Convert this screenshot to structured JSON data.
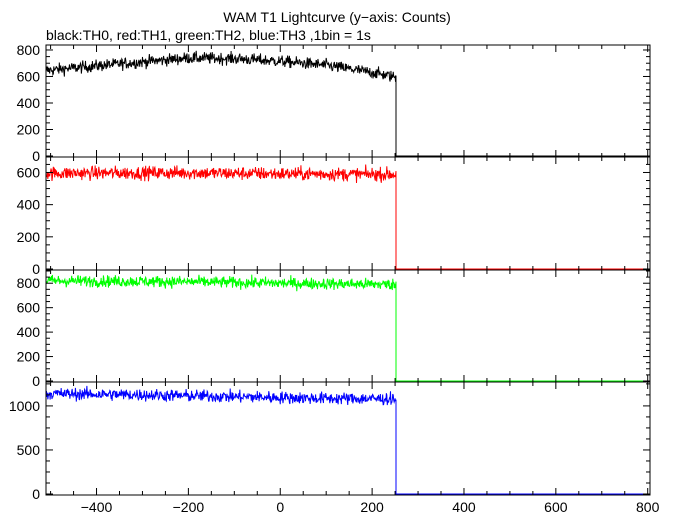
{
  "chart_data": {
    "type": "line",
    "title": "WAM T1 Lightcurve (y−axis: Counts)",
    "subtitle": "black:TH0, red:TH1, green:TH2, blue:TH3 ,1bin = 1s",
    "xlabel": "",
    "ylabel": "",
    "xlim": [
      -510,
      805
    ],
    "x_ticks": [
      -400,
      -200,
      0,
      200,
      400,
      600,
      800
    ],
    "x_tick_labels": [
      "−400",
      "−200",
      "0",
      "200",
      "400",
      "600",
      "800"
    ],
    "drop_at_x": 252,
    "grid": false,
    "panels": [
      {
        "series": "TH0",
        "color": "#000000",
        "ylim": [
          0,
          830
        ],
        "y_ticks": [
          0,
          200,
          400,
          600,
          800
        ],
        "y_tick_labels": [
          "0",
          "200",
          "400",
          "600",
          "800"
        ],
        "profile": [
          [
            -510,
            645
          ],
          [
            -400,
            680
          ],
          [
            -300,
            710
          ],
          [
            -200,
            740
          ],
          [
            -100,
            735
          ],
          [
            0,
            715
          ],
          [
            100,
            685
          ],
          [
            200,
            630
          ],
          [
            252,
            595
          ]
        ],
        "noise": 45,
        "after_value": 0
      },
      {
        "series": "TH1",
        "color": "#ff0000",
        "ylim": [
          0,
          690
        ],
        "y_ticks": [
          0,
          200,
          400,
          600
        ],
        "y_tick_labels": [
          "0",
          "200",
          "400",
          "600"
        ],
        "profile": [
          [
            -510,
            595
          ],
          [
            -200,
            598
          ],
          [
            0,
            592
          ],
          [
            252,
            588
          ]
        ],
        "noise": 42,
        "after_value": 0
      },
      {
        "series": "TH2",
        "color": "#00ff00",
        "ylim": [
          0,
          900
        ],
        "y_ticks": [
          0,
          200,
          400,
          600,
          800
        ],
        "y_tick_labels": [
          "0",
          "200",
          "400",
          "600",
          "800"
        ],
        "profile": [
          [
            -510,
            820
          ],
          [
            -200,
            812
          ],
          [
            0,
            800
          ],
          [
            252,
            790
          ]
        ],
        "noise": 48,
        "after_value": 0
      },
      {
        "series": "TH3",
        "color": "#0000ff",
        "ylim": [
          0,
          1260
        ],
        "y_ticks": [
          0,
          500,
          1000
        ],
        "y_tick_labels": [
          "0",
          "500",
          "1000"
        ],
        "profile": [
          [
            -510,
            1140
          ],
          [
            -300,
            1125
          ],
          [
            -100,
            1105
          ],
          [
            100,
            1085
          ],
          [
            252,
            1080
          ]
        ],
        "noise": 70,
        "after_value": 0
      }
    ]
  }
}
